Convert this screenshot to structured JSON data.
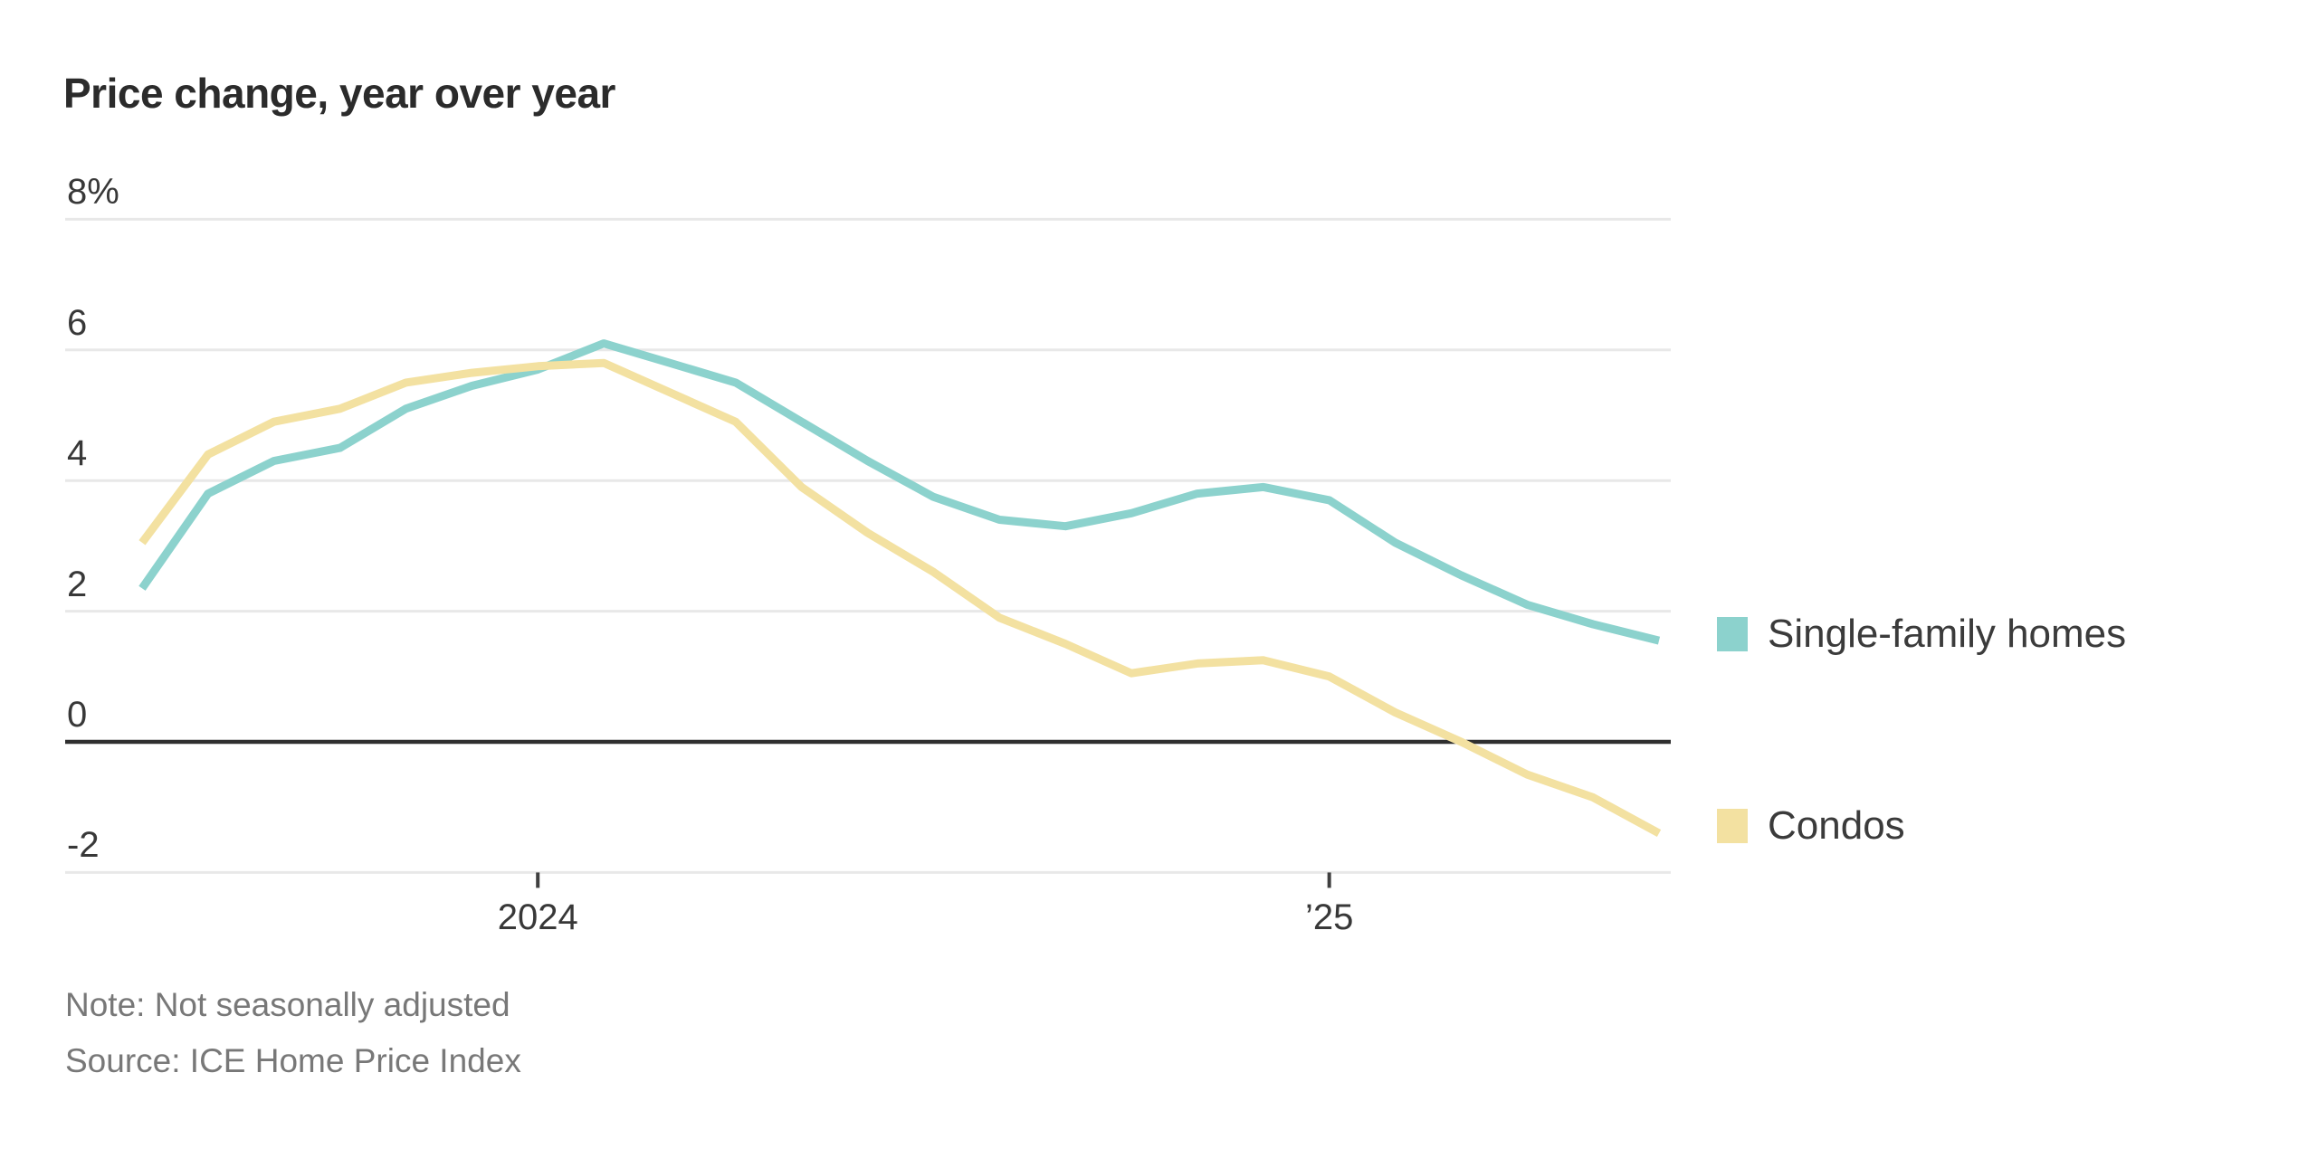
{
  "chart": {
    "title": "Price change, year over year",
    "note": "Note: Not seasonally adjusted",
    "source": "Source: ICE Home Price Index"
  },
  "chart_data": {
    "type": "line",
    "title": "Price change, year over year",
    "unit": "%",
    "ylim": [
      -2,
      8
    ],
    "grid": true,
    "legend_position": "right",
    "grid_color": "#e8e8e8",
    "zero_line_color": "#2f2f2f",
    "axis_tick_color": "#3f3f3f",
    "x": [
      "Jul 2023",
      "Aug 2023",
      "Sep 2023",
      "Oct 2023",
      "Nov 2023",
      "Dec 2023",
      "Jan 2024",
      "Feb 2024",
      "Mar 2024",
      "Apr 2024",
      "May 2024",
      "Jun 2024",
      "Jul 2024",
      "Aug 2024",
      "Sep 2024",
      "Oct 2024",
      "Nov 2024",
      "Dec 2024",
      "Jan 2025",
      "Feb 2025",
      "Mar 2025",
      "Apr 2025",
      "May 2025",
      "Jun 2025"
    ],
    "x_ticks": [
      {
        "label": "2024",
        "index": 6
      },
      {
        "label": "’25",
        "index": 18
      }
    ],
    "y_ticks": [
      {
        "label": "8%",
        "value": 8
      },
      {
        "label": "6",
        "value": 6
      },
      {
        "label": "4",
        "value": 4
      },
      {
        "label": "2",
        "value": 2
      },
      {
        "label": "0",
        "value": 0
      },
      {
        "label": "-2",
        "value": -2
      }
    ],
    "series": [
      {
        "name": "Single-family homes",
        "color": "#8CD2CD",
        "values": [
          2.35,
          3.8,
          4.3,
          4.5,
          5.1,
          5.45,
          5.7,
          6.1,
          5.8,
          5.5,
          4.9,
          4.3,
          3.75,
          3.4,
          3.3,
          3.5,
          3.8,
          3.9,
          3.7,
          3.05,
          2.55,
          2.1,
          1.8,
          1.55
        ]
      },
      {
        "name": "Condos",
        "color": "#F3E1A1",
        "values": [
          3.05,
          4.4,
          4.9,
          5.1,
          5.5,
          5.65,
          5.75,
          5.8,
          5.35,
          4.9,
          3.9,
          3.2,
          2.6,
          1.9,
          1.5,
          1.05,
          1.2,
          1.25,
          1.0,
          0.45,
          0.0,
          -0.5,
          -0.85,
          -1.4
        ]
      }
    ]
  }
}
